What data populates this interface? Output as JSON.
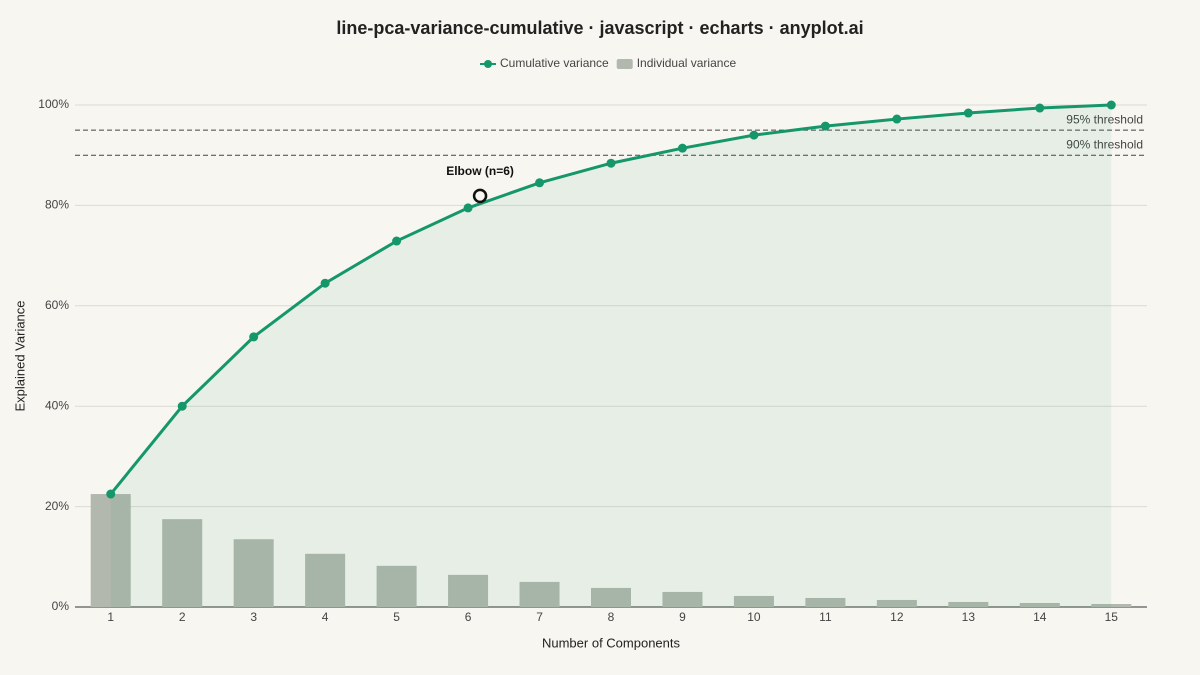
{
  "chart_data": {
    "type": "line",
    "title": "line-pca-variance-cumulative · javascript · echarts · anyplot.ai",
    "x_label": "Number of Components",
    "y_label": "Explained Variance",
    "categories": [
      "1",
      "2",
      "3",
      "4",
      "5",
      "6",
      "7",
      "8",
      "9",
      "10",
      "11",
      "12",
      "13",
      "14",
      "15"
    ],
    "series": [
      {
        "name": "Cumulative variance",
        "type": "line",
        "color": "#15976b",
        "values": [
          22.5,
          40.0,
          53.8,
          64.5,
          72.9,
          79.5,
          84.5,
          88.4,
          91.4,
          94.0,
          95.8,
          97.2,
          98.4,
          99.4,
          100
        ]
      },
      {
        "name": "Individual variance",
        "type": "bar",
        "color": "#b3b8ae",
        "values": [
          22.5,
          17.5,
          13.5,
          10.6,
          8.2,
          6.4,
          5.0,
          3.8,
          3.0,
          2.2,
          1.8,
          1.4,
          1.0,
          0.8,
          0.6
        ]
      }
    ],
    "ylim": [
      0,
      100
    ],
    "yticks": [
      {
        "value": 0,
        "label": "0%"
      },
      {
        "value": 20,
        "label": "20%"
      },
      {
        "value": 40,
        "label": "40%"
      },
      {
        "value": 60,
        "label": "60%"
      },
      {
        "value": 80,
        "label": "80%"
      },
      {
        "value": 100,
        "label": "100%"
      }
    ],
    "thresholds": [
      {
        "value": 95,
        "label": "95% threshold"
      },
      {
        "value": 90,
        "label": "90% threshold"
      }
    ],
    "annotation": {
      "text": "Elbow (n=6)",
      "x": 6
    },
    "grid": true
  }
}
